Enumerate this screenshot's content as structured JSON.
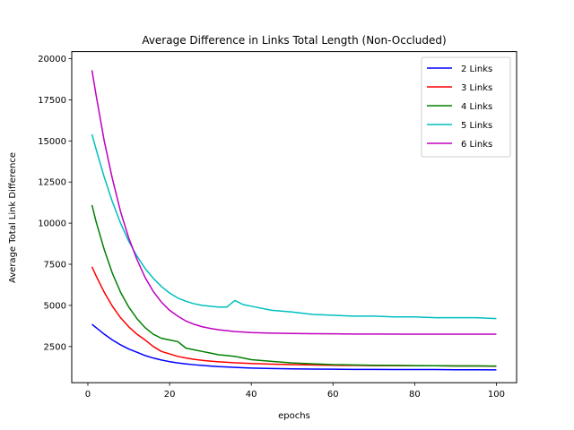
{
  "chart_data": {
    "type": "line",
    "title": "Average Difference in Links Total Length (Non-Occluded)",
    "xlabel": "epochs",
    "ylabel": "Average Total Link Difference",
    "xlim": [
      -3.95,
      104.95
    ],
    "ylim": [
      300,
      20430
    ],
    "xticks": [
      0,
      20,
      40,
      60,
      80,
      100
    ],
    "yticks": [
      2500,
      5000,
      7500,
      10000,
      12500,
      15000,
      17500,
      20000
    ],
    "xtick_labels": [
      "0",
      "20",
      "40",
      "60",
      "80",
      "100"
    ],
    "ytick_labels": [
      "2500",
      "5000",
      "7500",
      "10000",
      "12500",
      "15000",
      "17500",
      "20000"
    ],
    "grid": false,
    "legend_position": "upper right",
    "x": [
      1,
      2,
      4,
      6,
      8,
      10,
      12,
      14,
      16,
      18,
      20,
      22,
      24,
      26,
      28,
      30,
      32,
      34,
      36,
      38,
      40,
      45,
      50,
      55,
      60,
      65,
      70,
      75,
      80,
      85,
      90,
      95,
      100
    ],
    "series": [
      {
        "name": "2 Links",
        "color": "#0000ff",
        "values": [
          3850,
          3650,
          3250,
          2900,
          2600,
          2350,
          2150,
          1950,
          1800,
          1680,
          1580,
          1500,
          1440,
          1390,
          1350,
          1310,
          1280,
          1260,
          1230,
          1210,
          1190,
          1160,
          1140,
          1130,
          1120,
          1110,
          1110,
          1100,
          1100,
          1100,
          1090,
          1090,
          1080
        ]
      },
      {
        "name": "3 Links",
        "color": "#ff0000",
        "values": [
          7350,
          6800,
          5800,
          4950,
          4250,
          3700,
          3250,
          2900,
          2500,
          2200,
          2050,
          1900,
          1800,
          1720,
          1660,
          1610,
          1570,
          1540,
          1510,
          1490,
          1470,
          1430,
          1400,
          1380,
          1360,
          1350,
          1340,
          1340,
          1330,
          1330,
          1320,
          1320,
          1300
        ]
      },
      {
        "name": "4 Links",
        "color": "#008000",
        "values": [
          11100,
          10100,
          8400,
          6950,
          5800,
          4900,
          4200,
          3650,
          3250,
          3000,
          2900,
          2800,
          2400,
          2300,
          2200,
          2100,
          2000,
          1950,
          1900,
          1800,
          1700,
          1600,
          1500,
          1450,
          1400,
          1380,
          1360,
          1350,
          1340,
          1330,
          1320,
          1320,
          1310
        ]
      },
      {
        "name": "5 Links",
        "color": "#00bfbf",
        "values": [
          15400,
          14500,
          12800,
          11300,
          10000,
          8900,
          8000,
          7250,
          6650,
          6150,
          5750,
          5450,
          5250,
          5100,
          5000,
          4950,
          4900,
          4900,
          5300,
          5050,
          4950,
          4700,
          4600,
          4450,
          4400,
          4350,
          4350,
          4300,
          4300,
          4250,
          4250,
          4250,
          4200
        ]
      },
      {
        "name": "6 Links",
        "color": "#bf00bf",
        "values": [
          19300,
          17800,
          15000,
          12700,
          10700,
          9100,
          7800,
          6700,
          5850,
          5200,
          4700,
          4350,
          4050,
          3850,
          3700,
          3600,
          3520,
          3460,
          3410,
          3380,
          3350,
          3310,
          3290,
          3280,
          3270,
          3260,
          3260,
          3250,
          3250,
          3250,
          3250,
          3250,
          3250
        ]
      }
    ]
  }
}
